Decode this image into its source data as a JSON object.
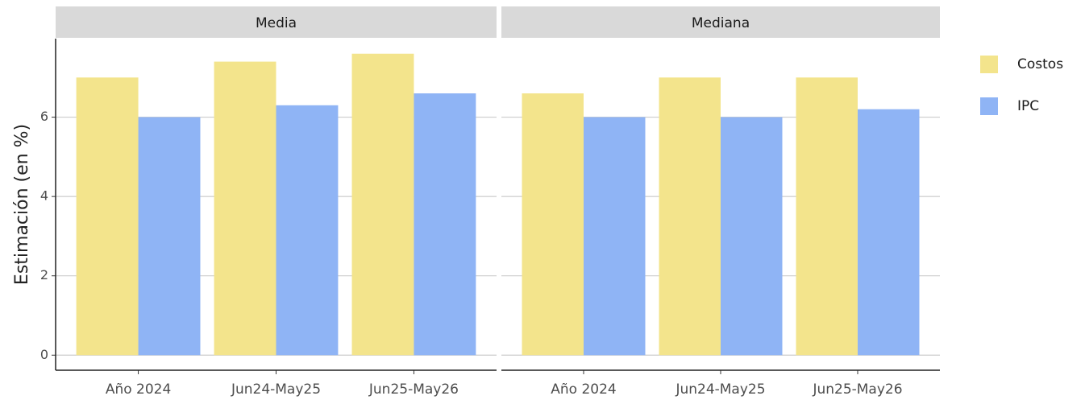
{
  "chart_data": {
    "type": "bar",
    "ylabel": "Estimación (en %)",
    "categories": [
      "Año 2024",
      "Jun24-May25",
      "Jun25-May26"
    ],
    "legend": [
      {
        "name": "Costos",
        "color": "#f3e48c"
      },
      {
        "name": "IPC",
        "color": "#8fb4f5"
      }
    ],
    "panels": [
      {
        "title": "Media",
        "series": [
          {
            "values": [
              7.0,
              7.4,
              7.6
            ]
          },
          {
            "values": [
              6.0,
              6.3,
              6.6
            ]
          }
        ]
      },
      {
        "title": "Mediana",
        "series": [
          {
            "values": [
              6.6,
              7.0,
              7.0
            ]
          },
          {
            "values": [
              6.0,
              6.0,
              6.2
            ]
          }
        ]
      }
    ],
    "ylim": [
      -0.38,
      7.98
    ],
    "yticks": [
      0,
      2,
      4,
      6
    ],
    "grid": true,
    "legend_position": "right"
  }
}
